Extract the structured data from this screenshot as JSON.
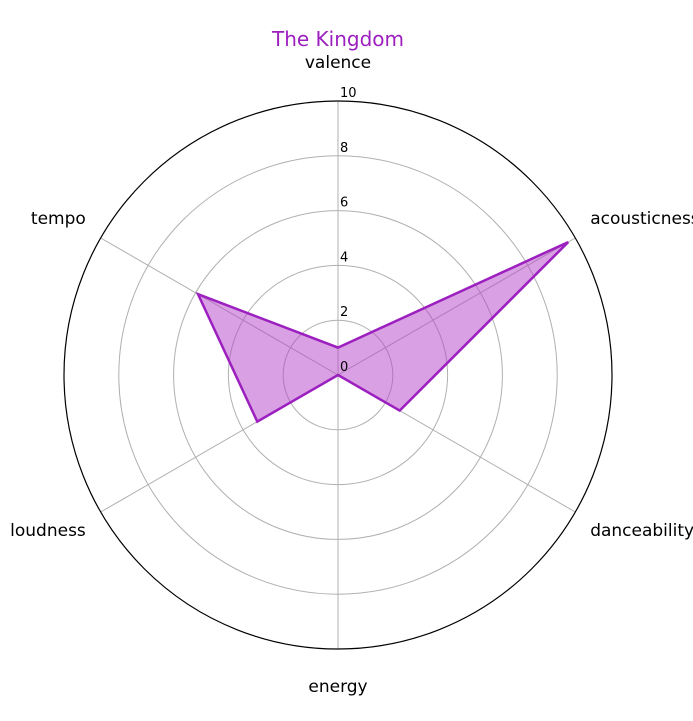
{
  "chart_data": {
    "type": "radar",
    "title": "The Kingdom",
    "title_color": "#9c1fbf",
    "axes": [
      "valence",
      "acousticness",
      "danceability",
      "energy",
      "loudness",
      "tempo"
    ],
    "rlim": [
      0,
      10
    ],
    "rticks": [
      0,
      2,
      4,
      6,
      8,
      10
    ],
    "series": [
      {
        "values": [
          1.0,
          9.7,
          2.6,
          0.0,
          3.4,
          5.9
        ],
        "line_color": "#9c1fbf",
        "fill_color": "#b442c8"
      }
    ],
    "grid": true,
    "grid_color": "#b0b0b0"
  }
}
